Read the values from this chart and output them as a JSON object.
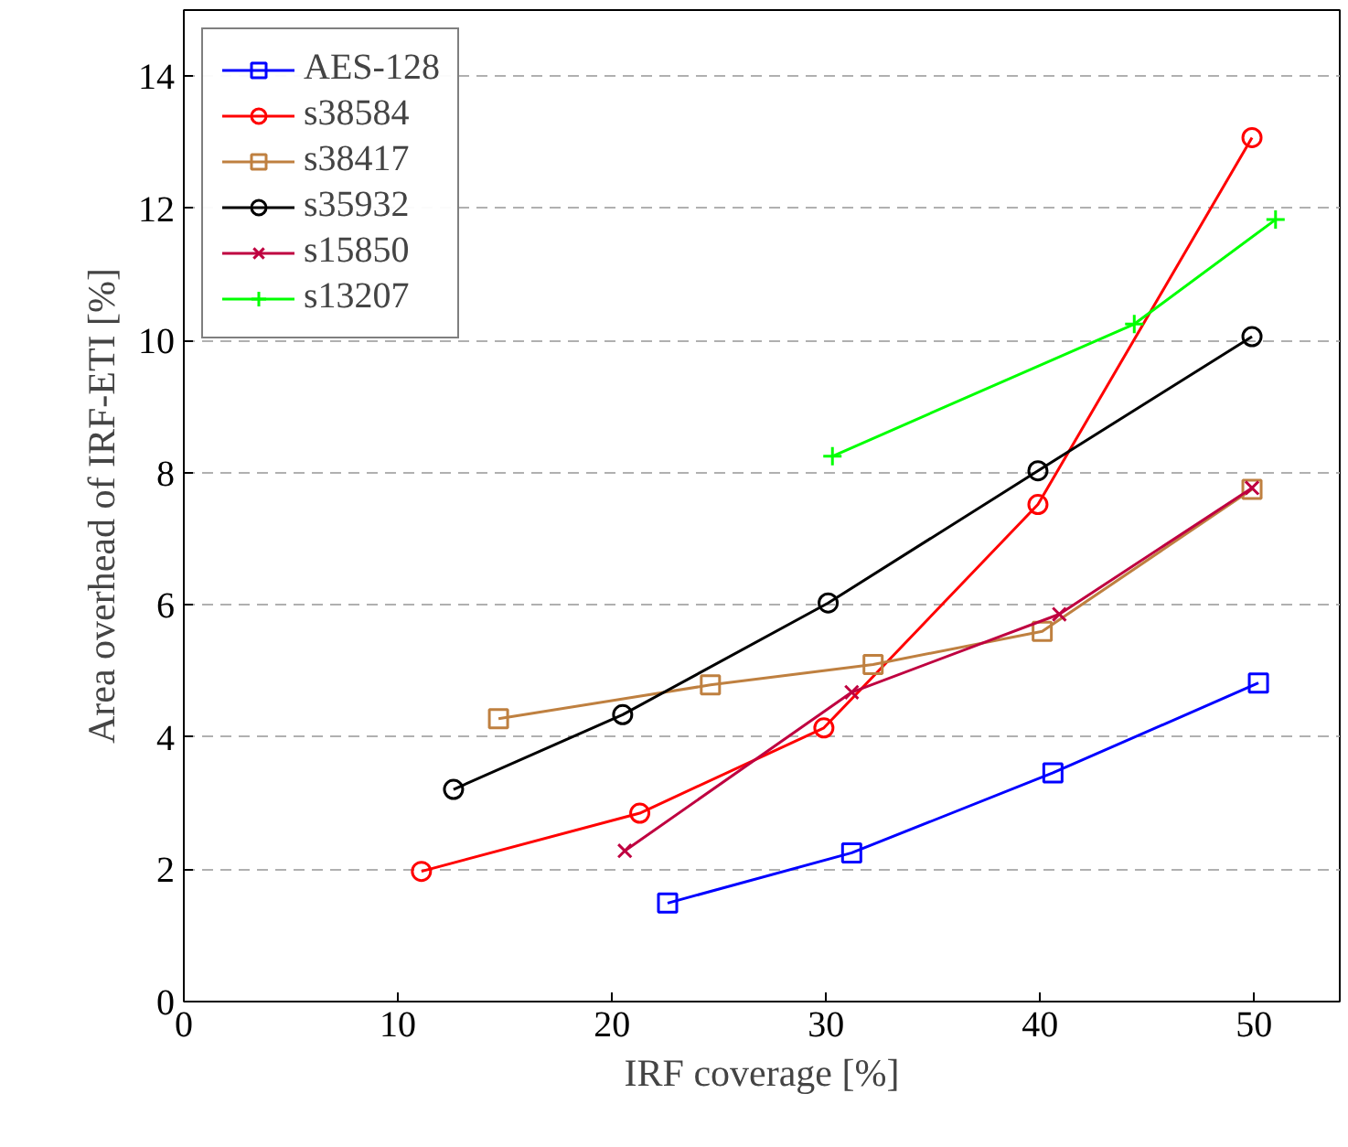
{
  "chart_data": {
    "type": "line",
    "xlabel": "IRF coverage [%]",
    "ylabel": "Area overhead of IRF-ETI [%]",
    "xlim": [
      0,
      54
    ],
    "ylim": [
      0,
      15
    ],
    "xticks": [
      0,
      10,
      20,
      30,
      40,
      50
    ],
    "yticks": [
      0,
      2,
      4,
      6,
      8,
      10,
      12,
      14
    ],
    "grid": "y",
    "legend": "top left",
    "series": [
      {
        "name": "AES-128",
        "color": "#0000ff",
        "marker": "square",
        "x": [
          22.6,
          31.2,
          40.6,
          50.2
        ],
        "values": [
          1.49,
          2.25,
          3.46,
          4.82
        ]
      },
      {
        "name": "s38584",
        "color": "#ff0000",
        "marker": "circle",
        "x": [
          11.1,
          21.3,
          29.9,
          39.9,
          49.9
        ],
        "values": [
          1.97,
          2.85,
          4.14,
          7.52,
          13.07
        ]
      },
      {
        "name": "s38417",
        "color": "#bf8040",
        "marker": "square",
        "x": [
          14.7,
          24.6,
          32.2,
          40.1,
          49.9
        ],
        "values": [
          4.28,
          4.79,
          5.1,
          5.6,
          7.75
        ]
      },
      {
        "name": "s35932",
        "color": "#000000",
        "marker": "circle",
        "x": [
          12.6,
          20.5,
          30.1,
          39.9,
          49.9
        ],
        "values": [
          3.21,
          4.34,
          6.03,
          8.03,
          10.06
        ]
      },
      {
        "name": "s15850",
        "color": "#bf0040",
        "marker": "x",
        "x": [
          20.6,
          31.2,
          40.9,
          49.9
        ],
        "values": [
          2.28,
          4.68,
          5.86,
          7.77
        ]
      },
      {
        "name": "s13207",
        "color": "#00ff00",
        "marker": "cross",
        "x": [
          30.3,
          44.4,
          51.0
        ],
        "values": [
          8.25,
          10.25,
          11.83
        ]
      }
    ]
  }
}
